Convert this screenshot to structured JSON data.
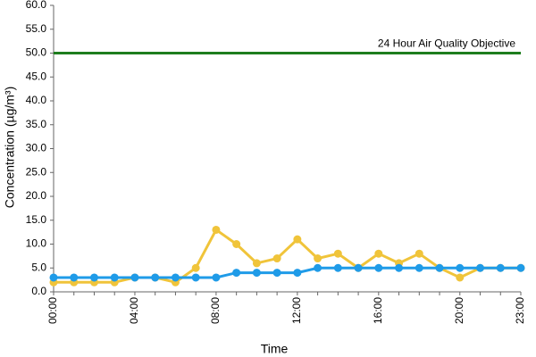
{
  "chart_data": {
    "type": "line",
    "x_label": "Time",
    "y_label": "Concentration (µg/m³)",
    "categories": [
      "00:00",
      null,
      null,
      null,
      "04:00",
      null,
      null,
      null,
      "08:00",
      null,
      null,
      null,
      "12:00",
      null,
      null,
      null,
      "16:00",
      null,
      null,
      null,
      "20:00",
      null,
      null,
      "23:00"
    ],
    "series": [
      {
        "color": "#f0c43a",
        "values": [
          2,
          2,
          2,
          2,
          3,
          3,
          2,
          5,
          13,
          10,
          6,
          7,
          11,
          7,
          8,
          5,
          8,
          6,
          8,
          5,
          3,
          5,
          5,
          5
        ]
      },
      {
        "color": "#1f9be8",
        "values": [
          3,
          3,
          3,
          3,
          3,
          3,
          3,
          3,
          3,
          4,
          4,
          4,
          4,
          5,
          5,
          5,
          5,
          5,
          5,
          5,
          5,
          5,
          5,
          5
        ]
      }
    ],
    "ylim": [
      0,
      60
    ],
    "yticks": [
      {
        "value": 0,
        "label": "0.0"
      },
      {
        "value": 5,
        "label": "5.0"
      },
      {
        "value": 10,
        "label": "10.0"
      },
      {
        "value": 15,
        "label": "15.0"
      },
      {
        "value": 20,
        "label": "20.0"
      },
      {
        "value": 25,
        "label": "25.0"
      },
      {
        "value": 30,
        "label": "30.0"
      },
      {
        "value": 35,
        "label": "35.0"
      },
      {
        "value": 40,
        "label": "40.0"
      },
      {
        "value": 45,
        "label": "45.0"
      },
      {
        "value": 50,
        "label": "50.0"
      },
      {
        "value": 55,
        "label": "55.0"
      },
      {
        "value": 60,
        "label": "60.0"
      }
    ],
    "objective": {
      "value": 50,
      "label": "24 Hour Air Quality Objective",
      "color": "#1e7d1e"
    }
  }
}
